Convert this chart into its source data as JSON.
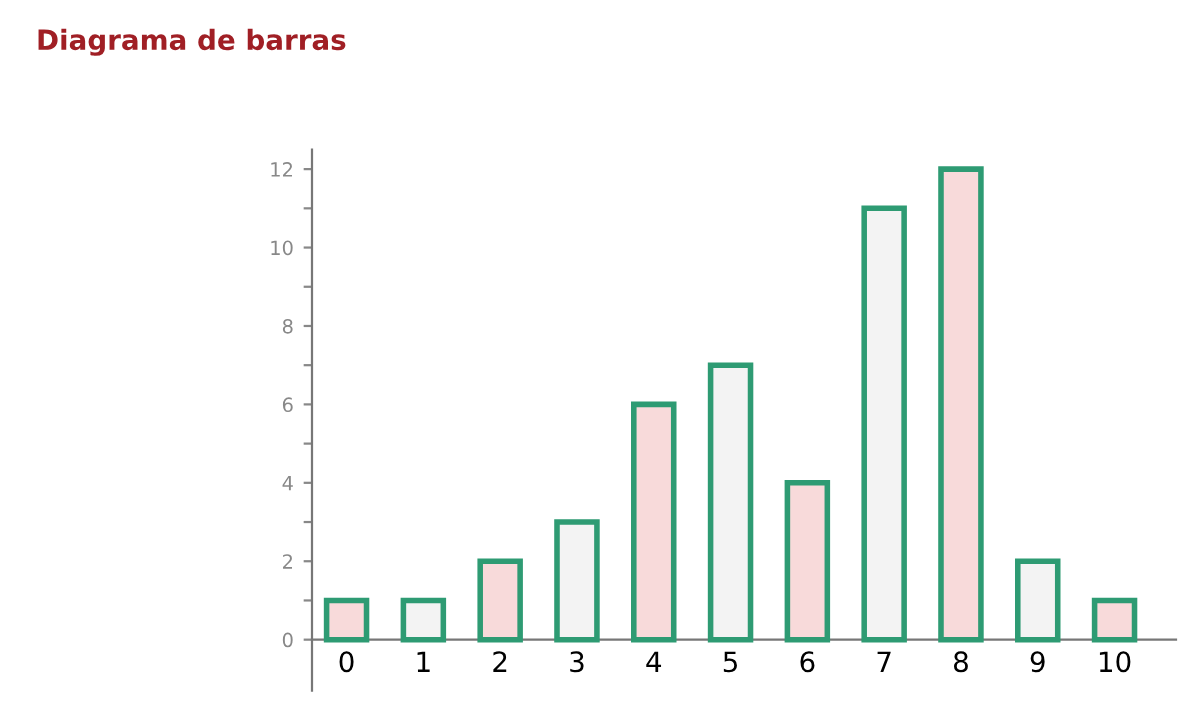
{
  "chart_data": {
    "type": "bar",
    "title": "Diagrama de barras",
    "categories": [
      "0",
      "1",
      "2",
      "3",
      "4",
      "5",
      "6",
      "7",
      "8",
      "9",
      "10"
    ],
    "values": [
      1,
      1,
      2,
      3,
      6,
      7,
      4,
      11,
      12,
      2,
      1
    ],
    "colors": [
      "#f8dada",
      "#f3f3f3",
      "#f8dada",
      "#f3f3f3",
      "#f8dada",
      "#f3f3f3",
      "#f8dada",
      "#f3f3f3",
      "#f8dada",
      "#f3f3f3",
      "#f8dada"
    ],
    "ylim": [
      -1.3,
      12.5
    ],
    "yticks": [
      0,
      {
        "value": 1,
        "label": null
      },
      2,
      {
        "value": 3,
        "label": null
      },
      4,
      {
        "value": 5,
        "label": null
      },
      6,
      {
        "value": 7,
        "label": null
      },
      8,
      {
        "value": 9,
        "label": null
      },
      10,
      {
        "value": 11,
        "label": null
      },
      12
    ],
    "grid": false,
    "legend": false
  }
}
